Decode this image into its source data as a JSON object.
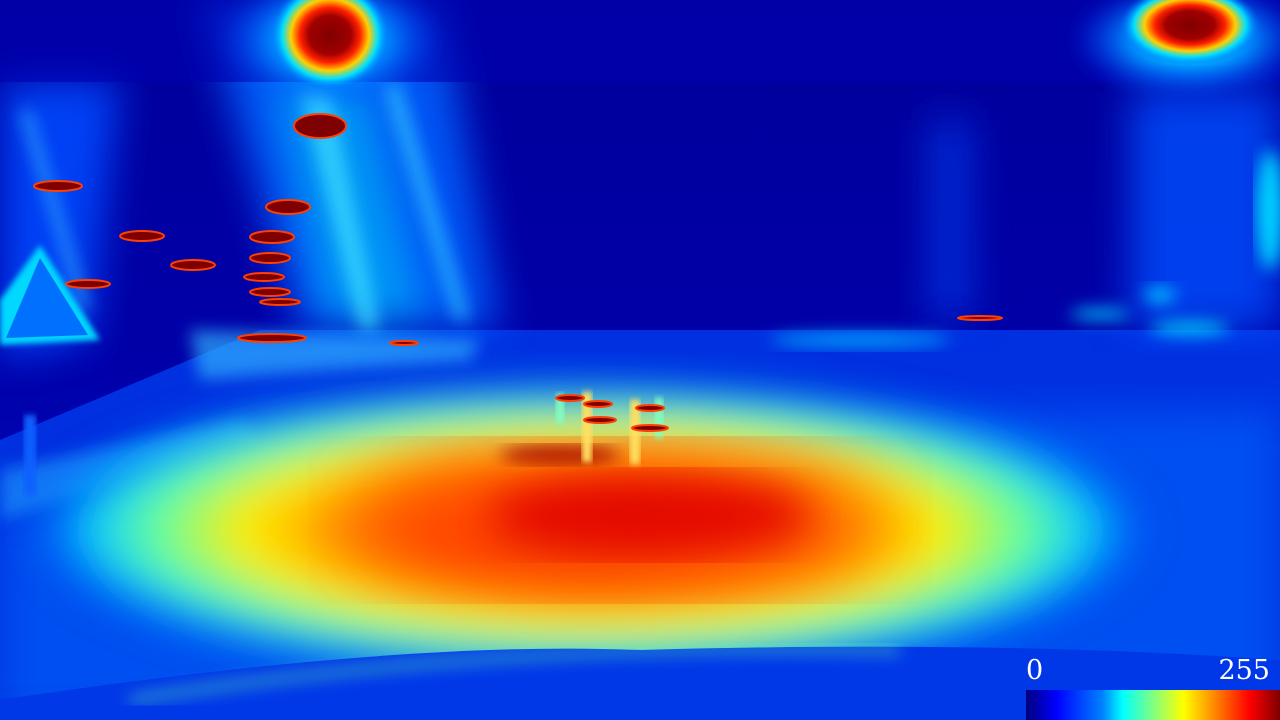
{
  "image": {
    "description_type": "false-color jet-colormap intensity map of a night road scene",
    "colormap": [
      "#00007f",
      "#0000ff",
      "#0080ff",
      "#00ffff",
      "#80ff80",
      "#ffff00",
      "#ff8000",
      "#ff0000",
      "#7f0000"
    ]
  },
  "colorbar": {
    "min_label": "0",
    "max_label": "255"
  }
}
